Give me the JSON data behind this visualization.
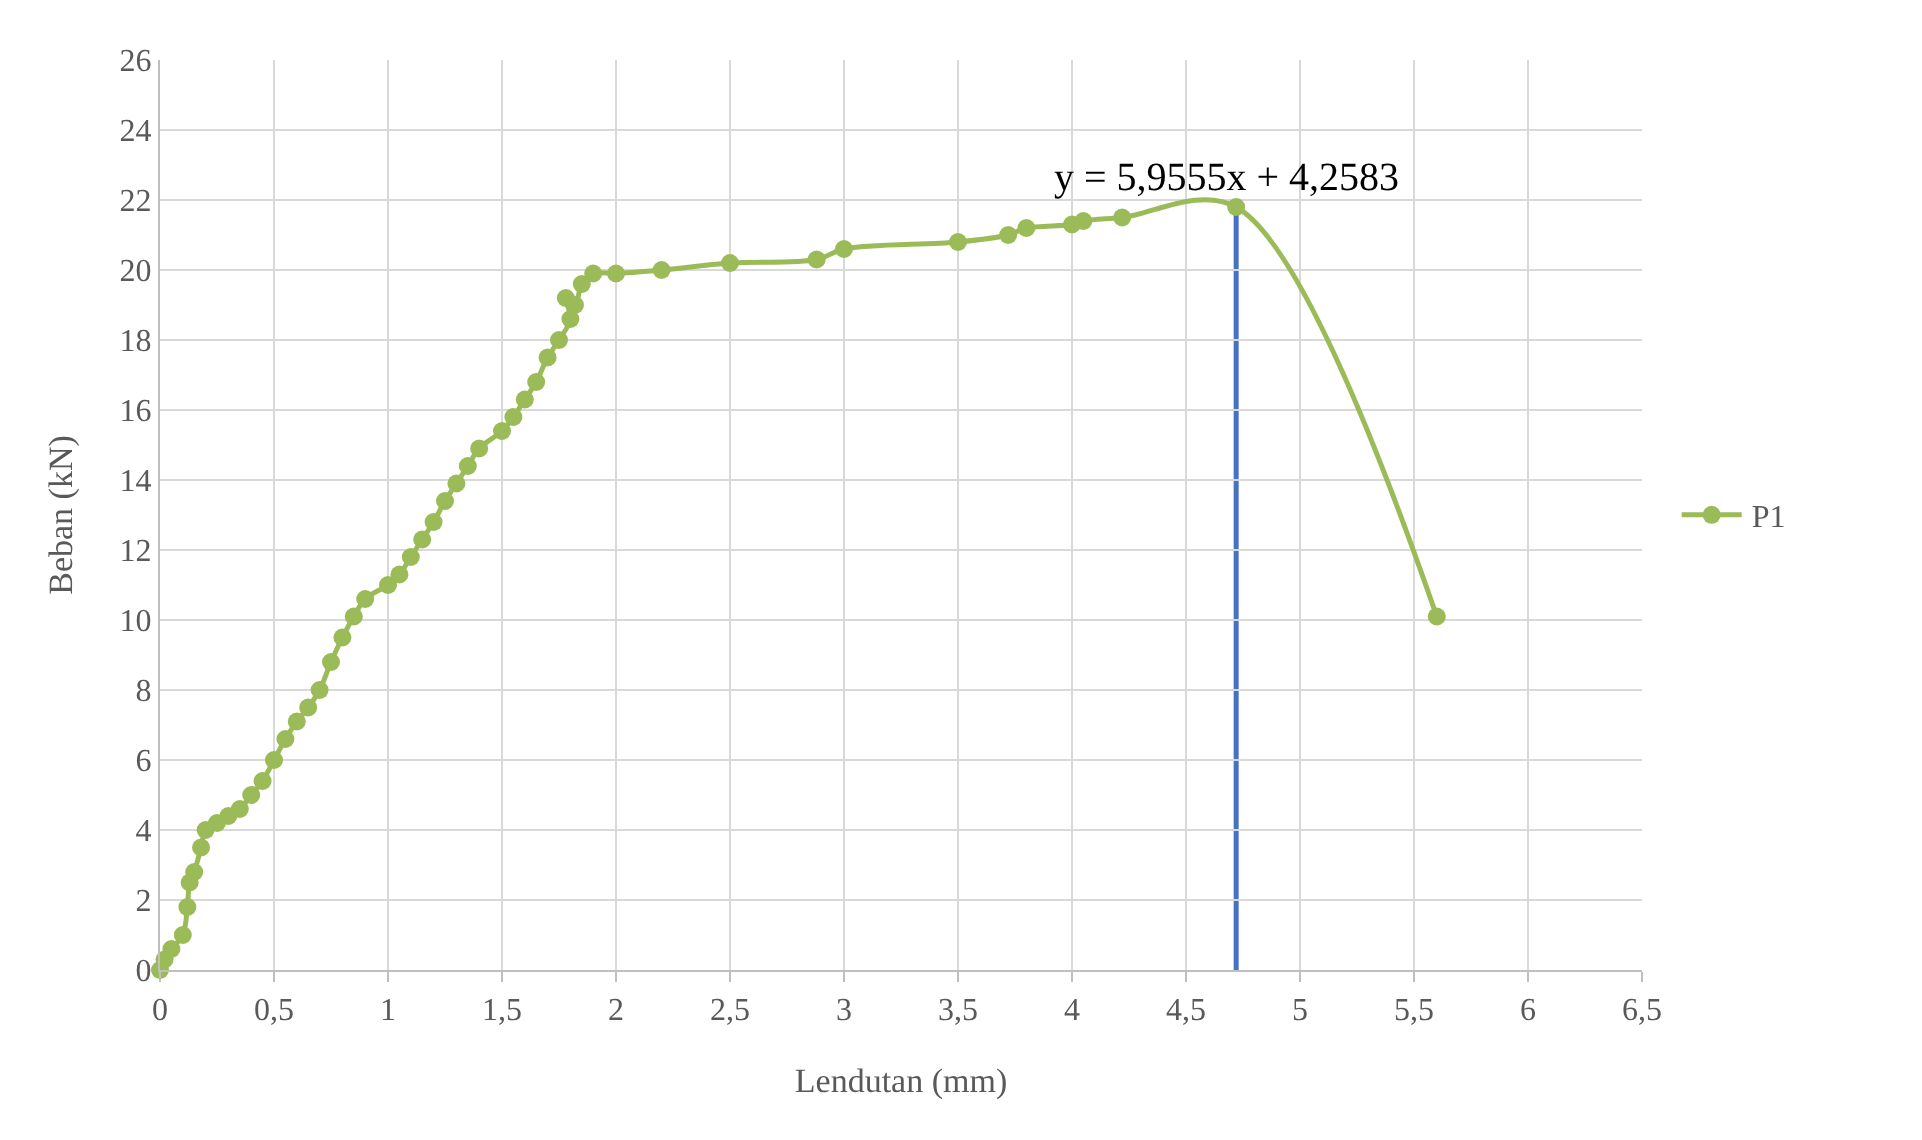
{
  "chart_data": {
    "type": "line",
    "xlabel": "Lendutan (mm)",
    "ylabel": "Beban (kN)",
    "xlim": [
      0,
      6.5
    ],
    "xticks": [
      0,
      {
        "value": 0.5,
        "label": "0,5"
      },
      1,
      {
        "value": 1.5,
        "label": "1,5"
      },
      2,
      {
        "value": 2.5,
        "label": "2,5"
      },
      3,
      {
        "value": 3.5,
        "label": "3,5"
      },
      4,
      {
        "value": 4.5,
        "label": "4,5"
      },
      5,
      {
        "value": 5.5,
        "label": "5,5"
      },
      6,
      {
        "value": 6.5,
        "label": "6,5"
      }
    ],
    "ylim": [
      0,
      26
    ],
    "yticks": [
      0,
      2,
      4,
      6,
      8,
      10,
      12,
      14,
      16,
      18,
      20,
      22,
      24,
      26
    ],
    "grid": true,
    "legend": "right",
    "marker": "circle",
    "line_style": "solid",
    "annotations": [
      "y = 5,9555x + 4,2583"
    ],
    "ref_lines": [
      {
        "axis": "x",
        "value": 4.72,
        "color": "#4472c4"
      }
    ],
    "series": [
      {
        "name": "P1",
        "color": "#9bbb59",
        "x": [
          0,
          0.02,
          0.05,
          0.1,
          0.12,
          0.13,
          0.15,
          0.18,
          0.2,
          0.25,
          0.3,
          0.35,
          0.4,
          0.45,
          0.5,
          0.55,
          0.6,
          0.65,
          0.7,
          0.75,
          0.8,
          0.85,
          0.9,
          1.0,
          1.05,
          1.1,
          1.15,
          1.2,
          1.25,
          1.3,
          1.35,
          1.4,
          1.5,
          1.55,
          1.6,
          1.65,
          1.7,
          1.75,
          1.8,
          1.78,
          1.82,
          1.85,
          1.9,
          2.0,
          2.2,
          2.5,
          2.88,
          3.0,
          3.5,
          3.72,
          3.8,
          4.0,
          4.05,
          4.22,
          4.72,
          5.6
        ],
        "values": [
          0,
          0.3,
          0.6,
          1.0,
          1.8,
          2.5,
          2.8,
          3.5,
          4.0,
          4.2,
          4.4,
          4.6,
          5.0,
          5.4,
          6.0,
          6.6,
          7.1,
          7.5,
          8.0,
          8.8,
          9.5,
          10.1,
          10.6,
          11.0,
          11.3,
          11.8,
          12.3,
          12.8,
          13.4,
          13.9,
          14.4,
          14.9,
          15.4,
          15.8,
          16.3,
          16.8,
          17.5,
          18.0,
          18.6,
          19.2,
          19.0,
          19.6,
          19.9,
          19.9,
          20.0,
          20.2,
          20.3,
          20.6,
          20.8,
          21.0,
          21.2,
          21.3,
          21.4,
          21.5,
          21.8,
          10.1
        ]
      }
    ]
  }
}
